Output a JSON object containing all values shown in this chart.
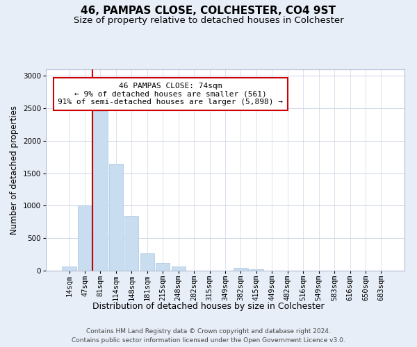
{
  "title": "46, PAMPAS CLOSE, COLCHESTER, CO4 9ST",
  "subtitle": "Size of property relative to detached houses in Colchester",
  "xlabel": "Distribution of detached houses by size in Colchester",
  "ylabel": "Number of detached properties",
  "categories": [
    "14sqm",
    "47sqm",
    "81sqm",
    "114sqm",
    "148sqm",
    "181sqm",
    "215sqm",
    "248sqm",
    "282sqm",
    "315sqm",
    "349sqm",
    "382sqm",
    "415sqm",
    "449sqm",
    "482sqm",
    "516sqm",
    "549sqm",
    "583sqm",
    "616sqm",
    "650sqm",
    "683sqm"
  ],
  "values": [
    60,
    1000,
    2460,
    1650,
    840,
    270,
    120,
    60,
    0,
    0,
    0,
    45,
    20,
    0,
    0,
    0,
    0,
    0,
    0,
    0,
    0
  ],
  "bar_color": "#c9ddf0",
  "bar_edgecolor": "#aac4e0",
  "vline_color": "#cc0000",
  "vline_x": 2,
  "annotation_line1": "46 PAMPAS CLOSE: 74sqm",
  "annotation_line2": "← 9% of detached houses are smaller (561)",
  "annotation_line3": "91% of semi-detached houses are larger (5,898) →",
  "annotation_box_facecolor": "#ffffff",
  "annotation_box_edgecolor": "#cc0000",
  "ylim": [
    0,
    3100
  ],
  "yticks": [
    0,
    500,
    1000,
    1500,
    2000,
    2500,
    3000
  ],
  "footer1": "Contains HM Land Registry data © Crown copyright and database right 2024.",
  "footer2": "Contains public sector information licensed under the Open Government Licence v3.0.",
  "fig_facecolor": "#e8eef8",
  "plot_facecolor": "#ffffff",
  "grid_color": "#ccd4e8",
  "title_fontsize": 11,
  "subtitle_fontsize": 9.5,
  "xlabel_fontsize": 9,
  "ylabel_fontsize": 8.5,
  "tick_fontsize": 7.5,
  "annotation_fontsize": 8,
  "footer_fontsize": 6.5
}
